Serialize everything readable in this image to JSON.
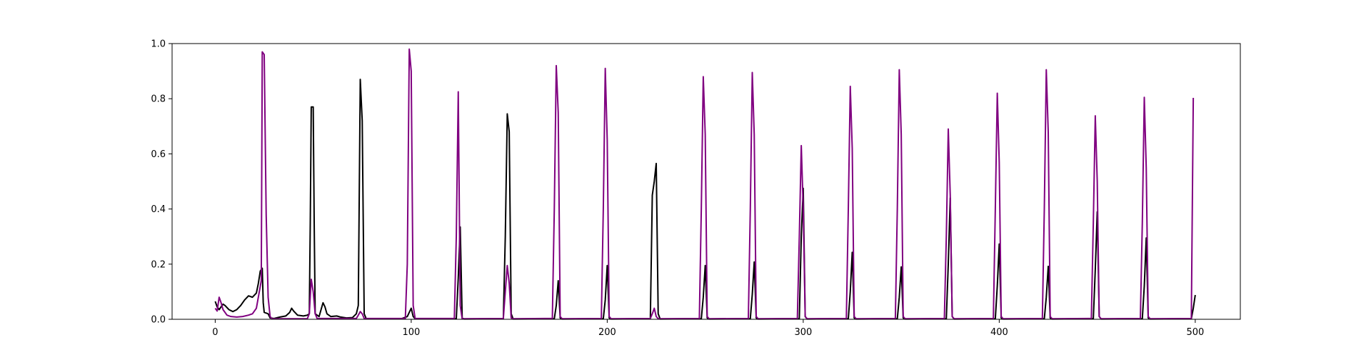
{
  "chart_data": {
    "type": "line",
    "title": "",
    "xlabel": "",
    "ylabel": "",
    "xlim": [
      -22,
      523
    ],
    "ylim": [
      0,
      1.0
    ],
    "grid": false,
    "x_ticks": [
      0,
      100,
      200,
      300,
      400,
      500
    ],
    "x_tick_labels": [
      "0",
      "100",
      "200",
      "300",
      "400",
      "500"
    ],
    "y_ticks": [
      0.0,
      0.2,
      0.4,
      0.6,
      0.8,
      1.0
    ],
    "y_tick_labels": [
      "0.0",
      "0.2",
      "0.4",
      "0.6",
      "0.8",
      "1.0"
    ],
    "series": [
      {
        "color": "#000000",
        "points": [
          [
            0,
            0.065
          ],
          [
            1,
            0.045
          ],
          [
            2,
            0.035
          ],
          [
            3,
            0.045
          ],
          [
            4,
            0.055
          ],
          [
            5,
            0.05
          ],
          [
            7,
            0.035
          ],
          [
            9,
            0.028
          ],
          [
            11,
            0.035
          ],
          [
            13,
            0.05
          ],
          [
            15,
            0.07
          ],
          [
            17,
            0.085
          ],
          [
            19,
            0.08
          ],
          [
            21,
            0.095
          ],
          [
            22,
            0.13
          ],
          [
            23,
            0.175
          ],
          [
            24,
            0.185
          ],
          [
            24.5,
            0.06
          ],
          [
            25,
            0.025
          ],
          [
            27,
            0.02
          ],
          [
            28,
            0.005
          ],
          [
            30,
            0.003
          ],
          [
            33,
            0.008
          ],
          [
            36,
            0.012
          ],
          [
            38,
            0.025
          ],
          [
            39,
            0.04
          ],
          [
            40,
            0.03
          ],
          [
            42,
            0.015
          ],
          [
            45,
            0.012
          ],
          [
            47,
            0.015
          ],
          [
            48,
            0.02
          ],
          [
            48.5,
            0.35
          ],
          [
            49,
            0.77
          ],
          [
            50,
            0.77
          ],
          [
            50.5,
            0.35
          ],
          [
            51,
            0.02
          ],
          [
            53,
            0.01
          ],
          [
            54,
            0.035
          ],
          [
            55,
            0.06
          ],
          [
            56,
            0.045
          ],
          [
            57,
            0.02
          ],
          [
            59,
            0.01
          ],
          [
            62,
            0.012
          ],
          [
            64,
            0.008
          ],
          [
            67,
            0.005
          ],
          [
            70,
            0.006
          ],
          [
            72,
            0.02
          ],
          [
            73,
            0.05
          ],
          [
            74,
            0.87
          ],
          [
            75,
            0.72
          ],
          [
            76,
            0.02
          ],
          [
            77,
            0.003
          ],
          [
            95,
            0.002
          ],
          [
            98,
            0.01
          ],
          [
            99,
            0.025
          ],
          [
            100,
            0.04
          ],
          [
            101,
            0.01
          ],
          [
            102,
            0.002
          ],
          [
            123,
            0.002
          ],
          [
            124,
            0.15
          ],
          [
            125,
            0.335
          ],
          [
            126,
            0.005
          ],
          [
            127,
            0.001
          ],
          [
            147,
            0.002
          ],
          [
            148,
            0.3
          ],
          [
            149,
            0.745
          ],
          [
            150,
            0.68
          ],
          [
            151,
            0.02
          ],
          [
            152,
            0.001
          ],
          [
            173,
            0.002
          ],
          [
            174,
            0.05
          ],
          [
            175,
            0.14
          ],
          [
            176,
            0.005
          ],
          [
            177,
            0.001
          ],
          [
            198,
            0.002
          ],
          [
            199,
            0.07
          ],
          [
            200,
            0.195
          ],
          [
            201,
            0.005
          ],
          [
            202,
            0.001
          ],
          [
            222,
            0.002
          ],
          [
            223,
            0.45
          ],
          [
            224,
            0.5
          ],
          [
            225,
            0.565
          ],
          [
            226,
            0.02
          ],
          [
            227,
            0.001
          ],
          [
            248,
            0.002
          ],
          [
            249,
            0.08
          ],
          [
            250,
            0.195
          ],
          [
            251,
            0.005
          ],
          [
            252,
            0.001
          ],
          [
            273,
            0.002
          ],
          [
            274,
            0.09
          ],
          [
            275,
            0.208
          ],
          [
            276,
            0.005
          ],
          [
            277,
            0.001
          ],
          [
            298,
            0.002
          ],
          [
            299,
            0.3
          ],
          [
            300,
            0.475
          ],
          [
            301,
            0.01
          ],
          [
            302,
            0.001
          ],
          [
            323,
            0.002
          ],
          [
            324,
            0.1
          ],
          [
            325,
            0.243
          ],
          [
            326,
            0.005
          ],
          [
            327,
            0.001
          ],
          [
            348,
            0.002
          ],
          [
            349,
            0.08
          ],
          [
            350,
            0.19
          ],
          [
            351,
            0.005
          ],
          [
            352,
            0.001
          ],
          [
            373,
            0.002
          ],
          [
            374,
            0.2
          ],
          [
            375,
            0.44
          ],
          [
            376,
            0.01
          ],
          [
            377,
            0.001
          ],
          [
            398,
            0.002
          ],
          [
            399,
            0.12
          ],
          [
            400,
            0.273
          ],
          [
            401,
            0.005
          ],
          [
            402,
            0.001
          ],
          [
            423,
            0.002
          ],
          [
            424,
            0.08
          ],
          [
            425,
            0.192
          ],
          [
            426,
            0.005
          ],
          [
            427,
            0.001
          ],
          [
            448,
            0.002
          ],
          [
            449,
            0.18
          ],
          [
            450,
            0.39
          ],
          [
            451,
            0.01
          ],
          [
            452,
            0.001
          ],
          [
            473,
            0.002
          ],
          [
            474,
            0.12
          ],
          [
            475,
            0.295
          ],
          [
            476,
            0.005
          ],
          [
            477,
            0.001
          ],
          [
            498,
            0.002
          ],
          [
            499,
            0.04
          ],
          [
            500,
            0.088
          ]
        ]
      },
      {
        "color": "#800080",
        "points": [
          [
            0,
            0.04
          ],
          [
            1,
            0.03
          ],
          [
            2,
            0.08
          ],
          [
            3,
            0.06
          ],
          [
            4,
            0.035
          ],
          [
            6,
            0.015
          ],
          [
            8,
            0.01
          ],
          [
            11,
            0.008
          ],
          [
            14,
            0.01
          ],
          [
            17,
            0.015
          ],
          [
            19,
            0.02
          ],
          [
            21,
            0.04
          ],
          [
            22,
            0.08
          ],
          [
            23,
            0.12
          ],
          [
            23.5,
            0.14
          ],
          [
            24,
            0.97
          ],
          [
            25,
            0.96
          ],
          [
            26,
            0.38
          ],
          [
            27,
            0.08
          ],
          [
            28,
            0.01
          ],
          [
            29,
            0.002
          ],
          [
            47,
            0.002
          ],
          [
            48,
            0.02
          ],
          [
            49,
            0.145
          ],
          [
            50,
            0.1
          ],
          [
            51,
            0.02
          ],
          [
            52,
            0.003
          ],
          [
            72,
            0.003
          ],
          [
            73,
            0.015
          ],
          [
            74,
            0.028
          ],
          [
            75,
            0.02
          ],
          [
            76,
            0.003
          ],
          [
            97,
            0.003
          ],
          [
            98,
            0.2
          ],
          [
            99,
            0.98
          ],
          [
            100,
            0.9
          ],
          [
            101,
            0.05
          ],
          [
            102,
            0.003
          ],
          [
            122,
            0.003
          ],
          [
            123,
            0.3
          ],
          [
            124,
            0.825
          ],
          [
            125,
            0.05
          ],
          [
            126,
            0.002
          ],
          [
            147,
            0.003
          ],
          [
            148,
            0.1
          ],
          [
            149,
            0.195
          ],
          [
            150,
            0.13
          ],
          [
            151,
            0.005
          ],
          [
            152,
            0.002
          ],
          [
            172,
            0.003
          ],
          [
            173,
            0.4
          ],
          [
            174,
            0.92
          ],
          [
            175,
            0.75
          ],
          [
            176,
            0.01
          ],
          [
            177,
            0.002
          ],
          [
            197,
            0.003
          ],
          [
            198,
            0.4
          ],
          [
            199,
            0.91
          ],
          [
            200,
            0.65
          ],
          [
            201,
            0.01
          ],
          [
            202,
            0.002
          ],
          [
            222,
            0.003
          ],
          [
            223,
            0.02
          ],
          [
            224,
            0.04
          ],
          [
            225,
            0.01
          ],
          [
            226,
            0.002
          ],
          [
            247,
            0.003
          ],
          [
            248,
            0.4
          ],
          [
            249,
            0.88
          ],
          [
            250,
            0.67
          ],
          [
            251,
            0.01
          ],
          [
            252,
            0.002
          ],
          [
            272,
            0.003
          ],
          [
            273,
            0.4
          ],
          [
            274,
            0.895
          ],
          [
            275,
            0.67
          ],
          [
            276,
            0.01
          ],
          [
            277,
            0.002
          ],
          [
            297,
            0.003
          ],
          [
            298,
            0.3
          ],
          [
            299,
            0.63
          ],
          [
            300,
            0.4
          ],
          [
            301,
            0.01
          ],
          [
            302,
            0.002
          ],
          [
            322,
            0.003
          ],
          [
            323,
            0.4
          ],
          [
            324,
            0.845
          ],
          [
            325,
            0.62
          ],
          [
            326,
            0.01
          ],
          [
            327,
            0.002
          ],
          [
            347,
            0.003
          ],
          [
            348,
            0.4
          ],
          [
            349,
            0.905
          ],
          [
            350,
            0.67
          ],
          [
            351,
            0.01
          ],
          [
            352,
            0.002
          ],
          [
            372,
            0.003
          ],
          [
            373,
            0.3
          ],
          [
            374,
            0.69
          ],
          [
            375,
            0.45
          ],
          [
            376,
            0.01
          ],
          [
            377,
            0.002
          ],
          [
            397,
            0.003
          ],
          [
            398,
            0.4
          ],
          [
            399,
            0.82
          ],
          [
            400,
            0.57
          ],
          [
            401,
            0.01
          ],
          [
            402,
            0.002
          ],
          [
            422,
            0.003
          ],
          [
            423,
            0.4
          ],
          [
            424,
            0.905
          ],
          [
            425,
            0.68
          ],
          [
            426,
            0.01
          ],
          [
            427,
            0.002
          ],
          [
            447,
            0.003
          ],
          [
            448,
            0.35
          ],
          [
            449,
            0.738
          ],
          [
            450,
            0.5
          ],
          [
            451,
            0.01
          ],
          [
            452,
            0.002
          ],
          [
            472,
            0.003
          ],
          [
            473,
            0.35
          ],
          [
            474,
            0.805
          ],
          [
            475,
            0.55
          ],
          [
            476,
            0.01
          ],
          [
            477,
            0.002
          ],
          [
            498,
            0.003
          ],
          [
            499,
            0.803
          ]
        ]
      }
    ]
  }
}
